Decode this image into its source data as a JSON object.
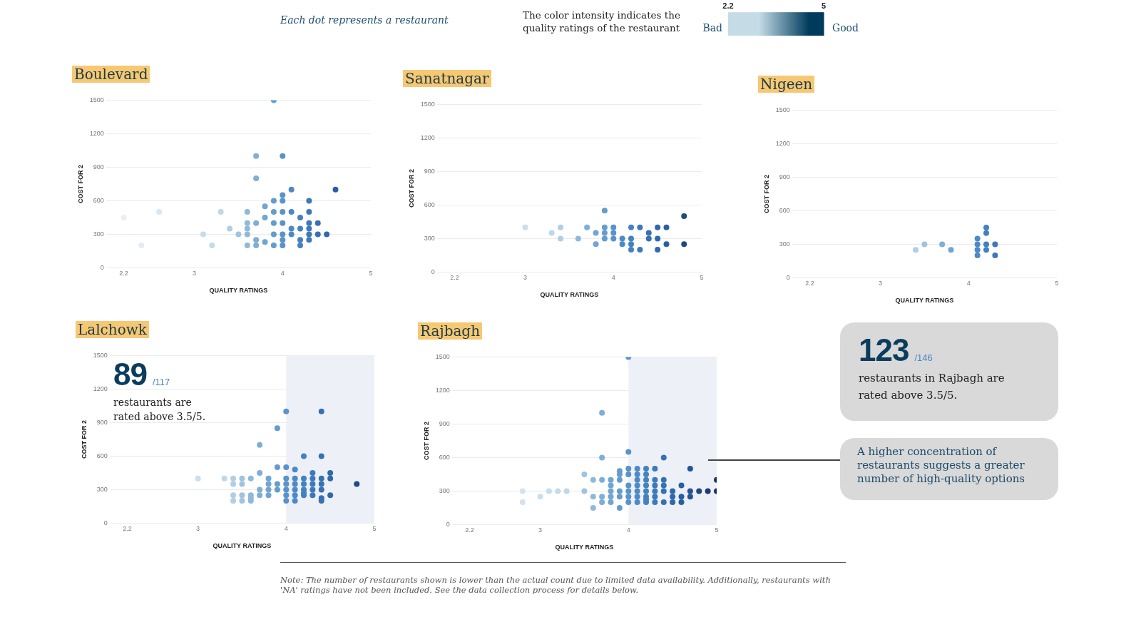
{
  "chart_data": [
    {
      "type": "scatter",
      "title": "Boulevard",
      "clabel": "The color intensity indicates the quality ratings of the restaurant",
      "clim": [
        2.2,
        5
      ],
      "cticks": [
        2.2,
        5
      ],
      "xlabel": "QUALITY RATINGS",
      "ylabel": "COST FOR 2",
      "xlim": [
        2,
        5
      ],
      "xticks": [
        2.2,
        3,
        4,
        5
      ],
      "ylim": [
        0,
        1500
      ],
      "yticks": [
        0,
        300,
        600,
        900,
        1200,
        1500
      ],
      "grid": "y",
      "marker": "circle",
      "series": [
        {
          "x": [
            2.2,
            2.4,
            2.6,
            3.1,
            3.2,
            3.3,
            3.4,
            3.5,
            3.6,
            3.6,
            3.6,
            3.6,
            3.6,
            3.7,
            3.7,
            3.7,
            3.7,
            3.7,
            3.8,
            3.8,
            3.8,
            3.9,
            3.9,
            3.9,
            3.9,
            3.9,
            3.9,
            4.0,
            4.0,
            4.0,
            4.0,
            4.0,
            4.0,
            4.0,
            4.0,
            4.1,
            4.1,
            4.1,
            4.1,
            4.2,
            4.2,
            4.2,
            4.2,
            4.3,
            4.3,
            4.3,
            4.3,
            4.3,
            4.3,
            4.4,
            4.4,
            4.5,
            4.6
          ],
          "values": [
            450,
            200,
            500,
            300,
            200,
            500,
            350,
            300,
            500,
            400,
            350,
            300,
            200,
            1000,
            800,
            400,
            250,
            200,
            550,
            450,
            230,
            1500,
            600,
            500,
            400,
            300,
            200,
            1000,
            650,
            600,
            500,
            400,
            300,
            250,
            200,
            700,
            500,
            350,
            300,
            450,
            350,
            250,
            200,
            600,
            500,
            400,
            350,
            300,
            250,
            400,
            300,
            300,
            700
          ]
        }
      ]
    },
    {
      "type": "scatter",
      "title": "Sanatnagar",
      "xlabel": "QUALITY RATINGS",
      "ylabel": "COST FOR 2",
      "xlim": [
        2,
        5
      ],
      "xticks": [
        2.2,
        3,
        4,
        5
      ],
      "ylim": [
        0,
        1500
      ],
      "yticks": [
        0,
        300,
        600,
        900,
        1200,
        1500
      ],
      "grid": "y",
      "marker": "circle",
      "series": [
        {
          "x": [
            3.0,
            3.3,
            3.4,
            3.4,
            3.6,
            3.7,
            3.8,
            3.8,
            3.9,
            3.9,
            3.9,
            3.9,
            4.0,
            4.0,
            4.0,
            4.1,
            4.1,
            4.2,
            4.2,
            4.2,
            4.2,
            4.3,
            4.3,
            4.4,
            4.4,
            4.5,
            4.5,
            4.5,
            4.6,
            4.6,
            4.8,
            4.8
          ],
          "values": [
            400,
            350,
            400,
            300,
            300,
            400,
            350,
            250,
            550,
            400,
            350,
            300,
            400,
            350,
            300,
            300,
            250,
            400,
            300,
            250,
            200,
            400,
            200,
            350,
            300,
            400,
            300,
            200,
            400,
            250,
            500,
            250
          ]
        }
      ]
    },
    {
      "type": "scatter",
      "title": "Nigeen",
      "xlabel": "QUALITY RATINGS",
      "ylabel": "COST FOR 2",
      "xlim": [
        2,
        5
      ],
      "xticks": [
        2.2,
        3,
        4,
        5
      ],
      "ylim": [
        0,
        1500
      ],
      "yticks": [
        0,
        300,
        600,
        900,
        1200,
        1500
      ],
      "grid": "y",
      "marker": "circle",
      "series": [
        {
          "x": [
            3.4,
            3.5,
            3.7,
            3.8,
            4.1,
            4.1,
            4.1,
            4.1,
            4.2,
            4.2,
            4.2,
            4.2,
            4.3,
            4.3
          ],
          "values": [
            250,
            300,
            300,
            250,
            350,
            300,
            250,
            200,
            450,
            400,
            300,
            250,
            300,
            200
          ]
        }
      ]
    },
    {
      "type": "scatter",
      "title": "Lalchowk",
      "xlabel": "QUALITY RATINGS",
      "ylabel": "COST FOR 2",
      "xlim": [
        2,
        5
      ],
      "xticks": [
        2.2,
        3,
        4,
        5
      ],
      "ylim": [
        0,
        1500
      ],
      "yticks": [
        0,
        300,
        600,
        900,
        1200,
        1500
      ],
      "grid": "y",
      "marker": "circle",
      "bands": [
        {
          "axis": "x",
          "from": 4,
          "to": 5,
          "color": "#eef0f7"
        }
      ],
      "annotations": [
        "89",
        "/117",
        "restaurants are rated above 3.5/5."
      ],
      "series": [
        {
          "x": [
            3.0,
            3.3,
            3.4,
            3.4,
            3.4,
            3.4,
            3.5,
            3.5,
            3.5,
            3.5,
            3.6,
            3.6,
            3.6,
            3.6,
            3.7,
            3.7,
            3.7,
            3.7,
            3.8,
            3.8,
            3.8,
            3.8,
            3.9,
            3.9,
            3.9,
            3.9,
            4.0,
            4.0,
            4.0,
            4.0,
            4.0,
            4.0,
            4.0,
            4.1,
            4.1,
            4.1,
            4.1,
            4.1,
            4.1,
            4.2,
            4.2,
            4.2,
            4.2,
            4.2,
            4.2,
            4.3,
            4.3,
            4.3,
            4.3,
            4.3,
            4.4,
            4.4,
            4.4,
            4.4,
            4.4,
            4.4,
            4.4,
            4.5,
            4.5,
            4.5,
            4.8
          ],
          "values": [
            400,
            400,
            400,
            350,
            250,
            200,
            400,
            350,
            250,
            200,
            400,
            250,
            225,
            200,
            700,
            450,
            300,
            250,
            400,
            350,
            300,
            250,
            850,
            500,
            350,
            300,
            1000,
            500,
            400,
            350,
            300,
            250,
            200,
            480,
            400,
            350,
            300,
            250,
            200,
            600,
            400,
            350,
            300,
            270,
            250,
            450,
            400,
            350,
            300,
            250,
            1000,
            600,
            400,
            350,
            300,
            225,
            200,
            450,
            400,
            250,
            350
          ]
        }
      ]
    },
    {
      "type": "scatter",
      "title": "Rajbagh",
      "xlabel": "QUALITY RATINGS",
      "ylabel": "COST FOR 2",
      "xlim": [
        2,
        5
      ],
      "xticks": [
        2.2,
        3,
        4,
        5
      ],
      "ylim": [
        0,
        1500
      ],
      "yticks": [
        0,
        300,
        600,
        900,
        1200,
        1500
      ],
      "grid": "y",
      "marker": "circle",
      "bands": [
        {
          "axis": "x",
          "from": 4,
          "to": 5,
          "color": "#eef0f7"
        }
      ],
      "annotations": [
        "123",
        "/146",
        "restaurants in Rajbagh are rated above 3.5/5.",
        "A higher concentration of restaurants suggests a greater number of high-quality options"
      ],
      "series": [
        {
          "x": [
            2.8,
            2.8,
            3.0,
            3.1,
            3.2,
            3.3,
            3.5,
            3.5,
            3.6,
            3.6,
            3.6,
            3.7,
            3.7,
            3.7,
            3.7,
            3.7,
            3.8,
            3.8,
            3.8,
            3.8,
            3.8,
            3.9,
            3.9,
            3.9,
            3.9,
            3.9,
            3.9,
            4.0,
            4.0,
            4.0,
            4.0,
            4.0,
            4.0,
            4.0,
            4.0,
            4.1,
            4.1,
            4.1,
            4.1,
            4.1,
            4.1,
            4.1,
            4.2,
            4.2,
            4.2,
            4.2,
            4.2,
            4.2,
            4.2,
            4.2,
            4.3,
            4.3,
            4.3,
            4.3,
            4.3,
            4.3,
            4.4,
            4.4,
            4.4,
            4.4,
            4.4,
            4.5,
            4.5,
            4.5,
            4.6,
            4.6,
            4.6,
            4.7,
            4.7,
            4.7,
            4.8,
            4.9,
            5.0,
            5.0
          ],
          "values": [
            300,
            200,
            250,
            300,
            300,
            300,
            450,
            300,
            400,
            250,
            150,
            1000,
            600,
            400,
            250,
            200,
            400,
            350,
            300,
            250,
            200,
            480,
            450,
            400,
            300,
            250,
            150,
            1500,
            650,
            500,
            450,
            350,
            300,
            250,
            200,
            500,
            450,
            400,
            350,
            300,
            250,
            200,
            500,
            450,
            400,
            350,
            300,
            250,
            225,
            200,
            500,
            400,
            350,
            300,
            250,
            200,
            600,
            400,
            350,
            300,
            200,
            300,
            250,
            200,
            350,
            250,
            200,
            500,
            300,
            250,
            300,
            300,
            400,
            300
          ]
        }
      ]
    },
    {
      "type": "other",
      "annotations": [
        "Each dot represents a restaurant",
        "Bad",
        "Good",
        "Note: The number of restaurants shown is lower than the actual count due to limited data availability. Additionally, restaurants with 'NA' ratings have not been included. See the data collection process for details below."
      ]
    }
  ]
}
